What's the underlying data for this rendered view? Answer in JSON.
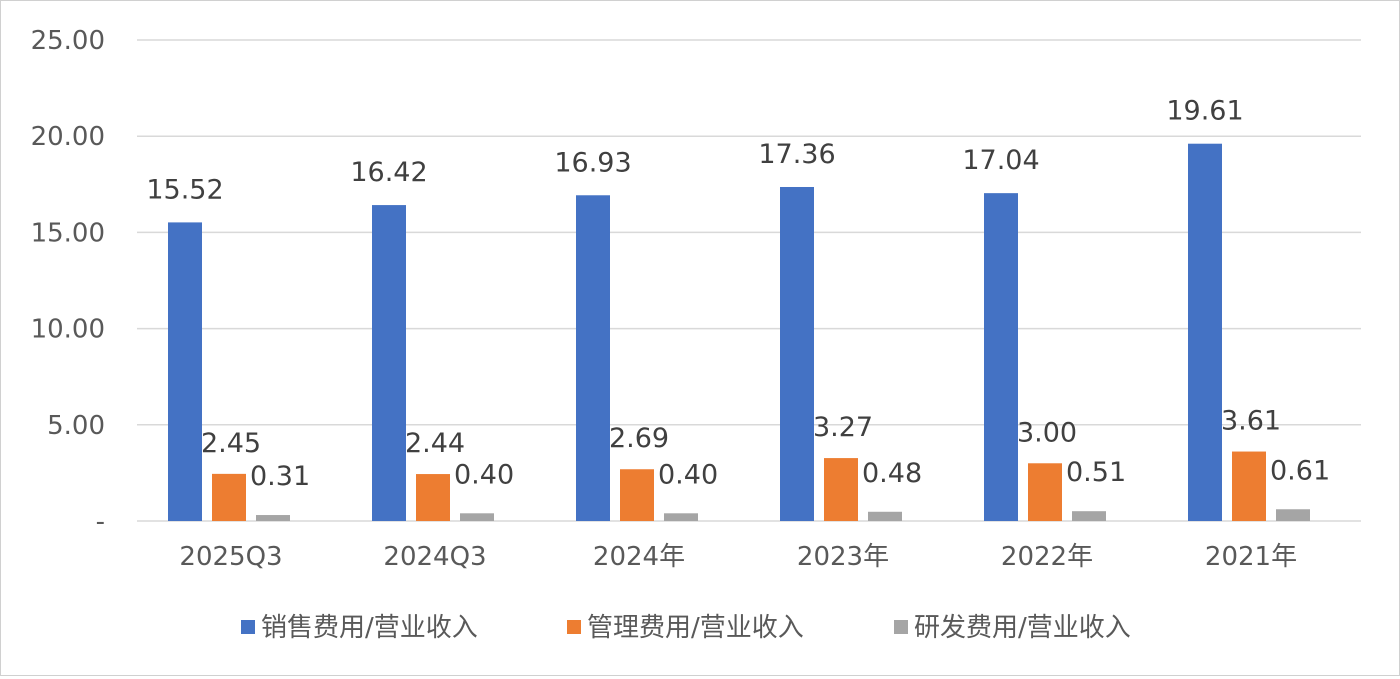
{
  "chart_data": {
    "type": "bar",
    "categories": [
      "2025Q3",
      "2024Q3",
      "2024年",
      "2023年",
      "2022年",
      "2021年"
    ],
    "series": [
      {
        "name": "销售费用/营业收入",
        "color": "#4472C4",
        "values": [
          15.52,
          16.42,
          16.93,
          17.36,
          17.04,
          19.61
        ],
        "labels": [
          "15.52",
          "16.42",
          "16.93",
          "17.36",
          "17.04",
          "19.61"
        ]
      },
      {
        "name": "管理费用/营业收入",
        "color": "#ED7D31",
        "values": [
          2.45,
          2.44,
          2.69,
          3.27,
          3.0,
          3.61
        ],
        "labels": [
          "2.45",
          "2.44",
          "2.69",
          "3.27",
          "3.00",
          "3.61"
        ]
      },
      {
        "name": "研发费用/营业收入",
        "color": "#A5A5A5",
        "values": [
          0.31,
          0.4,
          0.4,
          0.48,
          0.51,
          0.61
        ],
        "labels": [
          "0.31",
          "0.40",
          "0.40",
          "0.48",
          "0.51",
          "0.61"
        ]
      }
    ],
    "y_ticks": [
      "-",
      "5.00",
      "10.00",
      "15.00",
      "20.00",
      "25.00"
    ],
    "ylim": [
      0,
      25
    ],
    "grid": true,
    "legend_position": "bottom"
  }
}
